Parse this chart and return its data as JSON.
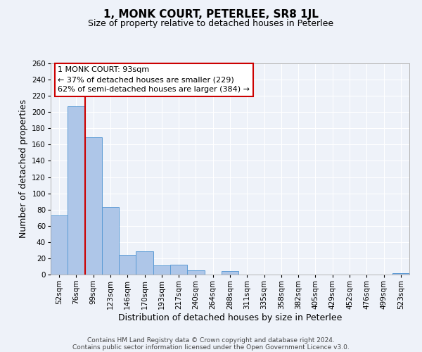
{
  "title": "1, MONK COURT, PETERLEE, SR8 1JL",
  "subtitle": "Size of property relative to detached houses in Peterlee",
  "xlabel": "Distribution of detached houses by size in Peterlee",
  "ylabel": "Number of detached properties",
  "bin_labels": [
    "52sqm",
    "76sqm",
    "99sqm",
    "123sqm",
    "146sqm",
    "170sqm",
    "193sqm",
    "217sqm",
    "240sqm",
    "264sqm",
    "288sqm",
    "311sqm",
    "335sqm",
    "358sqm",
    "382sqm",
    "405sqm",
    "429sqm",
    "452sqm",
    "476sqm",
    "499sqm",
    "523sqm"
  ],
  "bar_values": [
    73,
    207,
    169,
    83,
    24,
    29,
    11,
    12,
    5,
    0,
    4,
    0,
    0,
    0,
    0,
    0,
    0,
    0,
    0,
    0,
    2
  ],
  "bar_color": "#aec6e8",
  "bar_edge_color": "#5b9bd5",
  "ylim": [
    0,
    260
  ],
  "yticks": [
    0,
    20,
    40,
    60,
    80,
    100,
    120,
    140,
    160,
    180,
    200,
    220,
    240,
    260
  ],
  "marker_bin_index": 1,
  "marker_color": "#cc0000",
  "annotation_title": "1 MONK COURT: 93sqm",
  "annotation_line1": "← 37% of detached houses are smaller (229)",
  "annotation_line2": "62% of semi-detached houses are larger (384) →",
  "annotation_box_color": "#ffffff",
  "annotation_box_edge": "#cc0000",
  "footer_line1": "Contains HM Land Registry data © Crown copyright and database right 2024.",
  "footer_line2": "Contains public sector information licensed under the Open Government Licence v3.0.",
  "background_color": "#eef2f9",
  "grid_color": "#ffffff",
  "title_fontsize": 11,
  "subtitle_fontsize": 9,
  "axis_label_fontsize": 9,
  "tick_fontsize": 7.5,
  "annotation_fontsize": 8,
  "footer_fontsize": 6.5
}
